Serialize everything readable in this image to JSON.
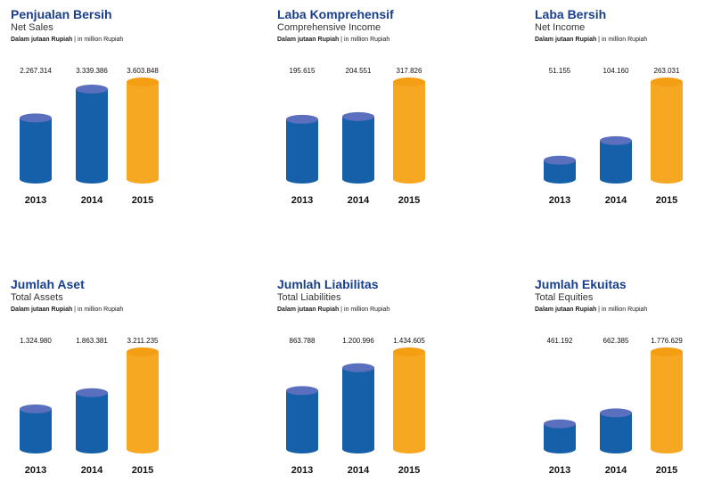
{
  "unit_label_id": "Dalam jutaan Rupiah",
  "unit_label_sep": " | ",
  "unit_label_en": "in million Rupiah",
  "colors": {
    "blue": "#1560a8",
    "blue_top": "#5a6fbd",
    "orange": "#f7a823",
    "orange_top": "#f49e14"
  },
  "chart_data": [
    {
      "type": "bar",
      "title": "Penjualan Bersih",
      "subtitle": "Net Sales",
      "categories": [
        "2013",
        "2014",
        "2015"
      ],
      "values": [
        2267314,
        3339386,
        3603848
      ],
      "labels": [
        "2.267.314",
        "3.339.386",
        "3.603.848"
      ]
    },
    {
      "type": "bar",
      "title": "Laba Komprehensif",
      "subtitle": "Comprehensive Income",
      "categories": [
        "2013",
        "2014",
        "2015"
      ],
      "values": [
        195615,
        204551,
        317826
      ],
      "labels": [
        "195.615",
        "204.551",
        "317.826"
      ]
    },
    {
      "type": "bar",
      "title": "Laba Bersih",
      "subtitle": "Net Income",
      "categories": [
        "2013",
        "2014",
        "2015"
      ],
      "values": [
        51155,
        104160,
        263031
      ],
      "labels": [
        "51.155",
        "104.160",
        "263.031"
      ]
    },
    {
      "type": "bar",
      "title": "Jumlah Aset",
      "subtitle": "Total Assets",
      "categories": [
        "2013",
        "2014",
        "2015"
      ],
      "values": [
        1324980,
        1863381,
        3211235
      ],
      "labels": [
        "1.324.980",
        "1.863.381",
        "3.211.235"
      ]
    },
    {
      "type": "bar",
      "title": "Jumlah Liabilitas",
      "subtitle": "Total Liabilities",
      "categories": [
        "2013",
        "2014",
        "2015"
      ],
      "values": [
        863788,
        1200996,
        1434605
      ],
      "labels": [
        "863.788",
        "1.200.996",
        "1.434.605"
      ]
    },
    {
      "type": "bar",
      "title": "Jumlah Ekuitas",
      "subtitle": "Total Equities",
      "categories": [
        "2013",
        "2014",
        "2015"
      ],
      "values": [
        461192,
        662385,
        1776629
      ],
      "labels": [
        "461.192",
        "662.385",
        "1.776.629"
      ]
    }
  ]
}
